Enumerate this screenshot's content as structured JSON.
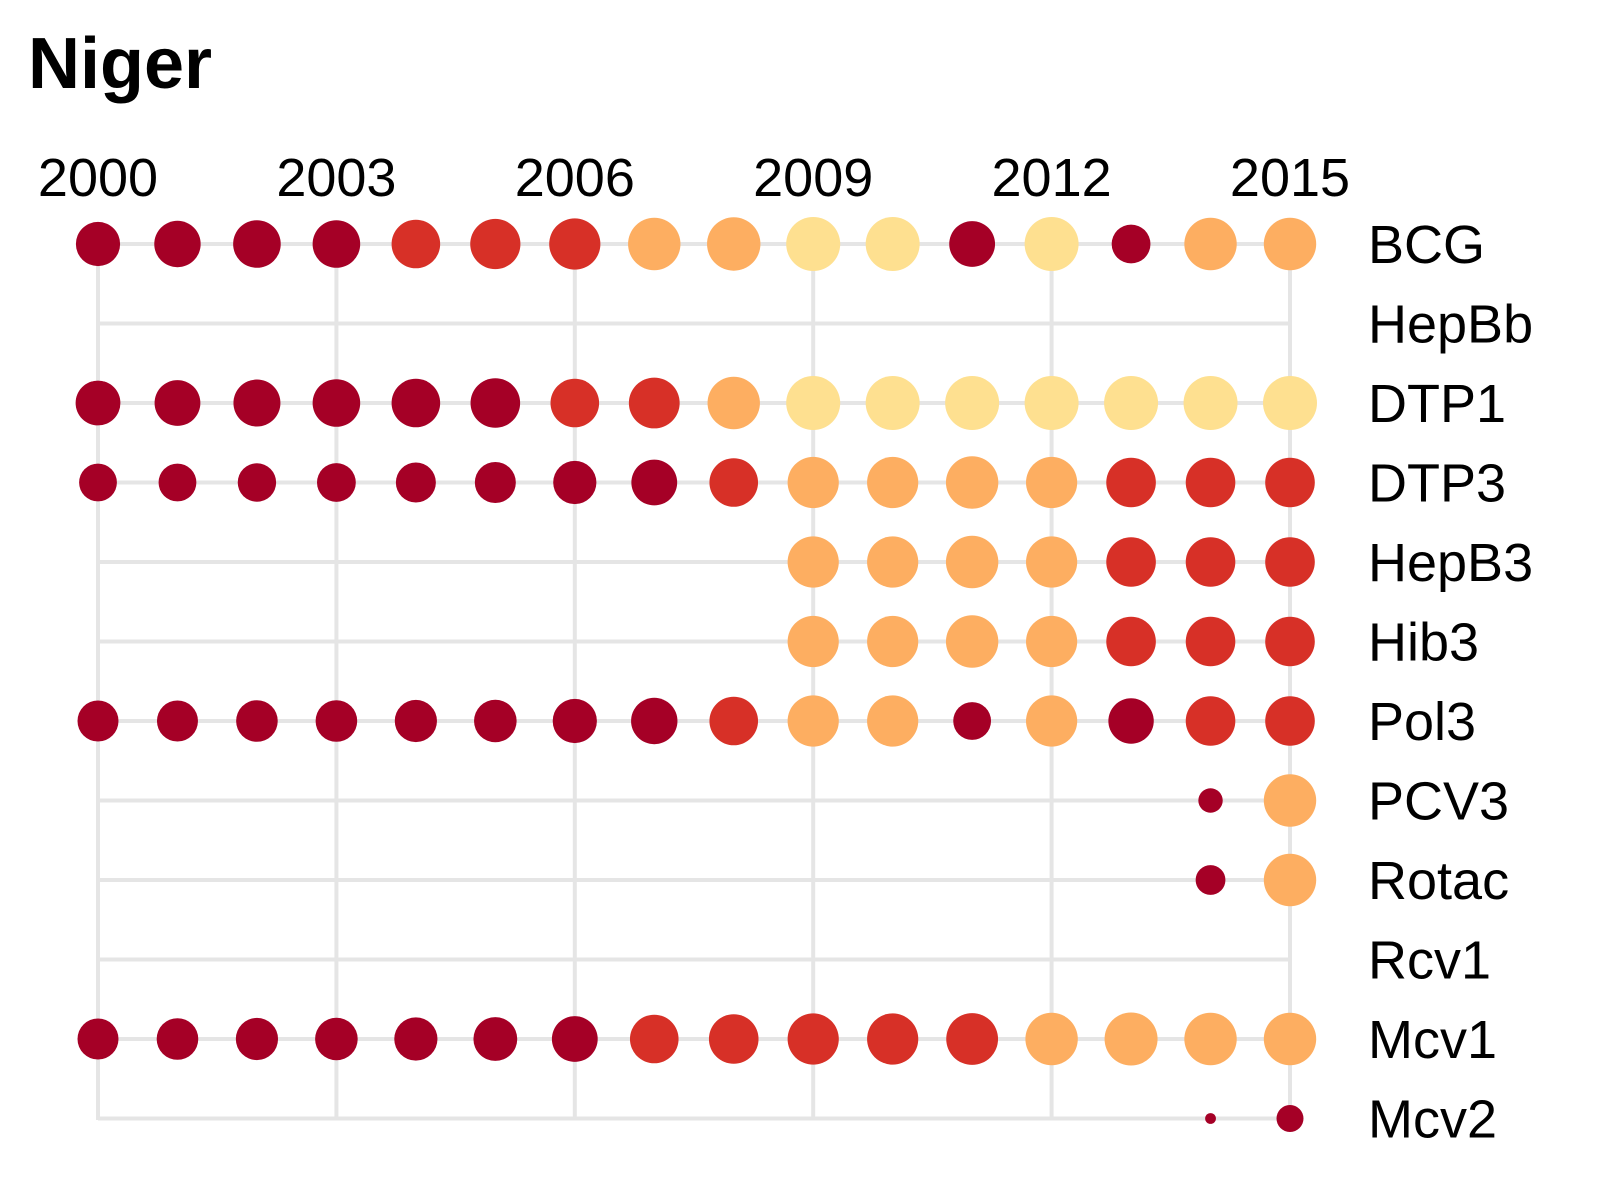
{
  "chart_data": {
    "type": "scatter",
    "title": "Niger",
    "x": [
      2000,
      2001,
      2002,
      2003,
      2004,
      2005,
      2006,
      2007,
      2008,
      2009,
      2010,
      2011,
      2012,
      2013,
      2014,
      2015
    ],
    "x_ticks": [
      "2000",
      "2003",
      "2006",
      "2009",
      "2012",
      "2015"
    ],
    "xlim": [
      2000,
      2015
    ],
    "x_axis_position": "top",
    "grid": true,
    "legend": "none",
    "categories": [
      "BCG",
      "HepBb",
      "DTP1",
      "DTP3",
      "HepB3",
      "Hib3",
      "Pol3",
      "PCV3",
      "Rotac",
      "Rcv1",
      "Mcv1",
      "Mcv2"
    ],
    "colors": {
      "dark_red": "#a50026",
      "red": "#d73027",
      "orange": "#fdae61",
      "light_yellow": "#fee090"
    },
    "series": [
      {
        "category": "BCG",
        "points": [
          {
            "year": 2000,
            "color": "dark_red",
            "size": 0.82
          },
          {
            "year": 2001,
            "color": "dark_red",
            "size": 0.86
          },
          {
            "year": 2002,
            "color": "dark_red",
            "size": 0.88
          },
          {
            "year": 2003,
            "color": "dark_red",
            "size": 0.88
          },
          {
            "year": 2004,
            "color": "red",
            "size": 0.9
          },
          {
            "year": 2005,
            "color": "red",
            "size": 0.93
          },
          {
            "year": 2006,
            "color": "red",
            "size": 0.95
          },
          {
            "year": 2007,
            "color": "orange",
            "size": 0.97
          },
          {
            "year": 2008,
            "color": "orange",
            "size": 0.99
          },
          {
            "year": 2009,
            "color": "light_yellow",
            "size": 1.0
          },
          {
            "year": 2010,
            "color": "light_yellow",
            "size": 1.0
          },
          {
            "year": 2011,
            "color": "dark_red",
            "size": 0.85
          },
          {
            "year": 2012,
            "color": "light_yellow",
            "size": 1.0
          },
          {
            "year": 2013,
            "color": "dark_red",
            "size": 0.72
          },
          {
            "year": 2014,
            "color": "orange",
            "size": 0.97
          },
          {
            "year": 2015,
            "color": "orange",
            "size": 0.97
          }
        ]
      },
      {
        "category": "HepBb",
        "points": []
      },
      {
        "category": "DTP1",
        "points": [
          {
            "year": 2000,
            "color": "dark_red",
            "size": 0.83
          },
          {
            "year": 2001,
            "color": "dark_red",
            "size": 0.85
          },
          {
            "year": 2002,
            "color": "dark_red",
            "size": 0.87
          },
          {
            "year": 2003,
            "color": "dark_red",
            "size": 0.88
          },
          {
            "year": 2004,
            "color": "dark_red",
            "size": 0.9
          },
          {
            "year": 2005,
            "color": "dark_red",
            "size": 0.92
          },
          {
            "year": 2006,
            "color": "red",
            "size": 0.9
          },
          {
            "year": 2007,
            "color": "red",
            "size": 0.94
          },
          {
            "year": 2008,
            "color": "orange",
            "size": 0.97
          },
          {
            "year": 2009,
            "color": "light_yellow",
            "size": 1.0
          },
          {
            "year": 2010,
            "color": "light_yellow",
            "size": 1.0
          },
          {
            "year": 2011,
            "color": "light_yellow",
            "size": 1.0
          },
          {
            "year": 2012,
            "color": "light_yellow",
            "size": 1.0
          },
          {
            "year": 2013,
            "color": "light_yellow",
            "size": 1.0
          },
          {
            "year": 2014,
            "color": "light_yellow",
            "size": 1.0
          },
          {
            "year": 2015,
            "color": "light_yellow",
            "size": 1.0
          }
        ]
      },
      {
        "category": "DTP3",
        "points": [
          {
            "year": 2000,
            "color": "dark_red",
            "size": 0.7
          },
          {
            "year": 2001,
            "color": "dark_red",
            "size": 0.7
          },
          {
            "year": 2002,
            "color": "dark_red",
            "size": 0.71
          },
          {
            "year": 2003,
            "color": "dark_red",
            "size": 0.72
          },
          {
            "year": 2004,
            "color": "dark_red",
            "size": 0.74
          },
          {
            "year": 2005,
            "color": "dark_red",
            "size": 0.76
          },
          {
            "year": 2006,
            "color": "dark_red",
            "size": 0.8
          },
          {
            "year": 2007,
            "color": "dark_red",
            "size": 0.85
          },
          {
            "year": 2008,
            "color": "red",
            "size": 0.9
          },
          {
            "year": 2009,
            "color": "orange",
            "size": 0.95
          },
          {
            "year": 2010,
            "color": "orange",
            "size": 0.95
          },
          {
            "year": 2011,
            "color": "orange",
            "size": 0.97
          },
          {
            "year": 2012,
            "color": "orange",
            "size": 0.95
          },
          {
            "year": 2013,
            "color": "red",
            "size": 0.92
          },
          {
            "year": 2014,
            "color": "red",
            "size": 0.92
          },
          {
            "year": 2015,
            "color": "red",
            "size": 0.92
          }
        ]
      },
      {
        "category": "HepB3",
        "points": [
          {
            "year": 2009,
            "color": "orange",
            "size": 0.95
          },
          {
            "year": 2010,
            "color": "orange",
            "size": 0.95
          },
          {
            "year": 2011,
            "color": "orange",
            "size": 0.97
          },
          {
            "year": 2012,
            "color": "orange",
            "size": 0.95
          },
          {
            "year": 2013,
            "color": "red",
            "size": 0.92
          },
          {
            "year": 2014,
            "color": "red",
            "size": 0.92
          },
          {
            "year": 2015,
            "color": "red",
            "size": 0.92
          }
        ]
      },
      {
        "category": "Hib3",
        "points": [
          {
            "year": 2009,
            "color": "orange",
            "size": 0.95
          },
          {
            "year": 2010,
            "color": "orange",
            "size": 0.95
          },
          {
            "year": 2011,
            "color": "orange",
            "size": 0.97
          },
          {
            "year": 2012,
            "color": "orange",
            "size": 0.95
          },
          {
            "year": 2013,
            "color": "red",
            "size": 0.92
          },
          {
            "year": 2014,
            "color": "red",
            "size": 0.92
          },
          {
            "year": 2015,
            "color": "red",
            "size": 0.92
          }
        ]
      },
      {
        "category": "Pol3",
        "points": [
          {
            "year": 2000,
            "color": "dark_red",
            "size": 0.76
          },
          {
            "year": 2001,
            "color": "dark_red",
            "size": 0.76
          },
          {
            "year": 2002,
            "color": "dark_red",
            "size": 0.77
          },
          {
            "year": 2003,
            "color": "dark_red",
            "size": 0.77
          },
          {
            "year": 2004,
            "color": "dark_red",
            "size": 0.78
          },
          {
            "year": 2005,
            "color": "dark_red",
            "size": 0.79
          },
          {
            "year": 2006,
            "color": "dark_red",
            "size": 0.82
          },
          {
            "year": 2007,
            "color": "dark_red",
            "size": 0.86
          },
          {
            "year": 2008,
            "color": "red",
            "size": 0.9
          },
          {
            "year": 2009,
            "color": "orange",
            "size": 0.95
          },
          {
            "year": 2010,
            "color": "orange",
            "size": 0.95
          },
          {
            "year": 2011,
            "color": "dark_red",
            "size": 0.7
          },
          {
            "year": 2012,
            "color": "orange",
            "size": 0.95
          },
          {
            "year": 2013,
            "color": "dark_red",
            "size": 0.84
          },
          {
            "year": 2014,
            "color": "red",
            "size": 0.92
          },
          {
            "year": 2015,
            "color": "red",
            "size": 0.92
          }
        ]
      },
      {
        "category": "PCV3",
        "points": [
          {
            "year": 2014,
            "color": "dark_red",
            "size": 0.45
          },
          {
            "year": 2015,
            "color": "orange",
            "size": 0.97
          }
        ]
      },
      {
        "category": "Rotac",
        "points": [
          {
            "year": 2014,
            "color": "dark_red",
            "size": 0.55
          },
          {
            "year": 2015,
            "color": "orange",
            "size": 0.97
          }
        ]
      },
      {
        "category": "Rcv1",
        "points": []
      },
      {
        "category": "Mcv1",
        "points": [
          {
            "year": 2000,
            "color": "dark_red",
            "size": 0.76
          },
          {
            "year": 2001,
            "color": "dark_red",
            "size": 0.77
          },
          {
            "year": 2002,
            "color": "dark_red",
            "size": 0.78
          },
          {
            "year": 2003,
            "color": "dark_red",
            "size": 0.79
          },
          {
            "year": 2004,
            "color": "dark_red",
            "size": 0.8
          },
          {
            "year": 2005,
            "color": "dark_red",
            "size": 0.81
          },
          {
            "year": 2006,
            "color": "dark_red",
            "size": 0.85
          },
          {
            "year": 2007,
            "color": "red",
            "size": 0.9
          },
          {
            "year": 2008,
            "color": "red",
            "size": 0.92
          },
          {
            "year": 2009,
            "color": "red",
            "size": 0.95
          },
          {
            "year": 2010,
            "color": "red",
            "size": 0.95
          },
          {
            "year": 2011,
            "color": "red",
            "size": 0.96
          },
          {
            "year": 2012,
            "color": "orange",
            "size": 0.97
          },
          {
            "year": 2013,
            "color": "orange",
            "size": 0.98
          },
          {
            "year": 2014,
            "color": "orange",
            "size": 0.97
          },
          {
            "year": 2015,
            "color": "orange",
            "size": 0.97
          }
        ]
      },
      {
        "category": "Mcv2",
        "points": [
          {
            "year": 2014,
            "color": "dark_red",
            "size": 0.2
          },
          {
            "year": 2015,
            "color": "dark_red",
            "size": 0.5
          }
        ]
      }
    ]
  }
}
